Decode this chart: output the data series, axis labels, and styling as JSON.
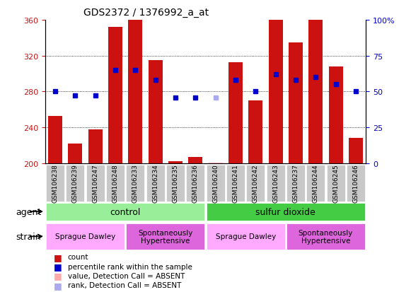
{
  "title": "GDS2372 / 1376992_a_at",
  "samples": [
    "GSM106238",
    "GSM106239",
    "GSM106247",
    "GSM106248",
    "GSM106233",
    "GSM106234",
    "GSM106235",
    "GSM106236",
    "GSM106240",
    "GSM106241",
    "GSM106242",
    "GSM106243",
    "GSM106237",
    "GSM106244",
    "GSM106245",
    "GSM106246"
  ],
  "count_values": [
    253,
    222,
    238,
    352,
    360,
    315,
    202,
    207,
    201,
    313,
    270,
    360,
    335,
    360,
    308,
    228
  ],
  "count_absent": [
    false,
    false,
    false,
    false,
    false,
    false,
    false,
    false,
    true,
    false,
    false,
    false,
    false,
    false,
    false,
    false
  ],
  "rank_values": [
    50,
    47,
    47,
    65,
    65,
    58,
    46,
    46,
    46,
    58,
    50,
    62,
    58,
    60,
    55,
    50
  ],
  "rank_absent": [
    false,
    false,
    false,
    false,
    false,
    false,
    false,
    false,
    true,
    false,
    false,
    false,
    false,
    false,
    false,
    false
  ],
  "ylim_left": [
    200,
    360
  ],
  "ylim_right": [
    0,
    100
  ],
  "yticks_left": [
    200,
    240,
    280,
    320,
    360
  ],
  "yticks_right": [
    0,
    25,
    50,
    75,
    100
  ],
  "ytick_labels_right": [
    "0",
    "25",
    "50",
    "75",
    "100%"
  ],
  "bar_color": "#cc1111",
  "bar_absent_color": "#ffaaaa",
  "rank_color": "#0000cc",
  "rank_absent_color": "#aaaaee",
  "agent_groups": [
    {
      "label": "control",
      "start": 0,
      "end": 8,
      "color": "#99ee99"
    },
    {
      "label": "sulfur dioxide",
      "start": 8,
      "end": 16,
      "color": "#44cc44"
    }
  ],
  "strain_groups": [
    {
      "label": "Sprague Dawley",
      "start": 0,
      "end": 4,
      "color": "#ffaaff"
    },
    {
      "label": "Spontaneously\nHypertensive",
      "start": 4,
      "end": 8,
      "color": "#dd66dd"
    },
    {
      "label": "Sprague Dawley",
      "start": 8,
      "end": 12,
      "color": "#ffaaff"
    },
    {
      "label": "Spontaneously\nHypertensive",
      "start": 12,
      "end": 16,
      "color": "#dd66dd"
    }
  ],
  "legend_items": [
    {
      "label": "count",
      "color": "#cc1111"
    },
    {
      "label": "percentile rank within the sample",
      "color": "#0000cc"
    },
    {
      "label": "value, Detection Call = ABSENT",
      "color": "#ffaaaa"
    },
    {
      "label": "rank, Detection Call = ABSENT",
      "color": "#aaaaee"
    }
  ],
  "agent_label": "agent",
  "strain_label": "strain",
  "tick_label_color_left": "#cc1111",
  "tick_label_color_right": "#0000cc",
  "bar_width": 0.7,
  "rank_marker_size": 5,
  "grid_lines": [
    240,
    280,
    320
  ],
  "sample_box_color": "#c8c8c8"
}
